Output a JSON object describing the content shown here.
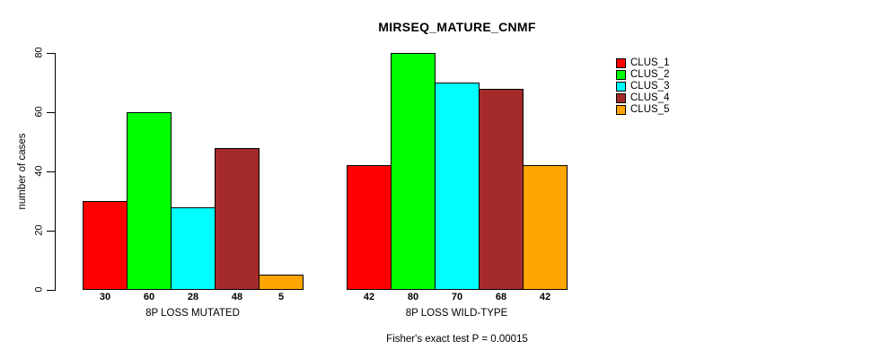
{
  "chart_data": {
    "type": "bar",
    "title": "MIRSEQ_MATURE_CNMF",
    "ylabel": "number of cases",
    "xlabel": "",
    "ylim": [
      0,
      80
    ],
    "yticks": [
      0,
      20,
      40,
      60,
      80
    ],
    "grid": false,
    "legend_position": "right",
    "categories": [
      "8P LOSS MUTATED",
      "8P LOSS WILD-TYPE"
    ],
    "series": [
      {
        "name": "CLUS_1",
        "color": "#ff0000",
        "values": [
          30,
          42
        ]
      },
      {
        "name": "CLUS_2",
        "color": "#00ff00",
        "values": [
          60,
          80
        ]
      },
      {
        "name": "CLUS_3",
        "color": "#00ffff",
        "values": [
          28,
          70
        ]
      },
      {
        "name": "CLUS_4",
        "color": "#a52a2a",
        "values": [
          48,
          68
        ]
      },
      {
        "name": "CLUS_5",
        "color": "#ffa500",
        "values": [
          5,
          42
        ]
      }
    ],
    "bar_value_labels_shown": true,
    "annotation": "Fisher's exact test P = 0.00015",
    "axis_color": "#000000",
    "bar_border_color": "#000000",
    "background_color": "#ffffff"
  }
}
